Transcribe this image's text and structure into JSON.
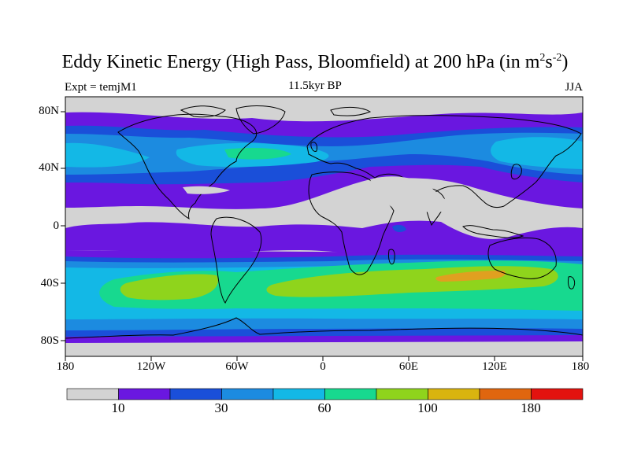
{
  "title": {
    "main": "Eddy Kinetic Energy (High Pass, Bloomfield) at 200 hPa (in m",
    "sup1": "2",
    "mid": "s",
    "sup2": "-2",
    "end": ")"
  },
  "subtitle": "11.5kyr BP",
  "left_label": "Expt = temjM1",
  "right_label": "JJA",
  "lat_labels": [
    "80N",
    "40N",
    "0",
    "40S",
    "80S"
  ],
  "lon_labels": [
    "180",
    "120W",
    "60W",
    "0",
    "60E",
    "120E",
    "180"
  ],
  "colorbar": {
    "colors": [
      "#d3d3d3",
      "#6a17e0",
      "#1a4fd9",
      "#1c8be0",
      "#13b8e6",
      "#17d98f",
      "#8fd41c",
      "#d9b40f",
      "#e0660f",
      "#e3120f"
    ],
    "labels": [
      "10",
      "30",
      "60",
      "100",
      "180"
    ]
  },
  "map_colors": {
    "gray": "#d3d3d3",
    "violet": "#6a17e0",
    "blue": "#1a4fd9",
    "midblue": "#1c8be0",
    "cyan": "#13b8e6",
    "green": "#17d98f",
    "yellowgreen": "#8fd41c",
    "orange": "#e0a020"
  }
}
